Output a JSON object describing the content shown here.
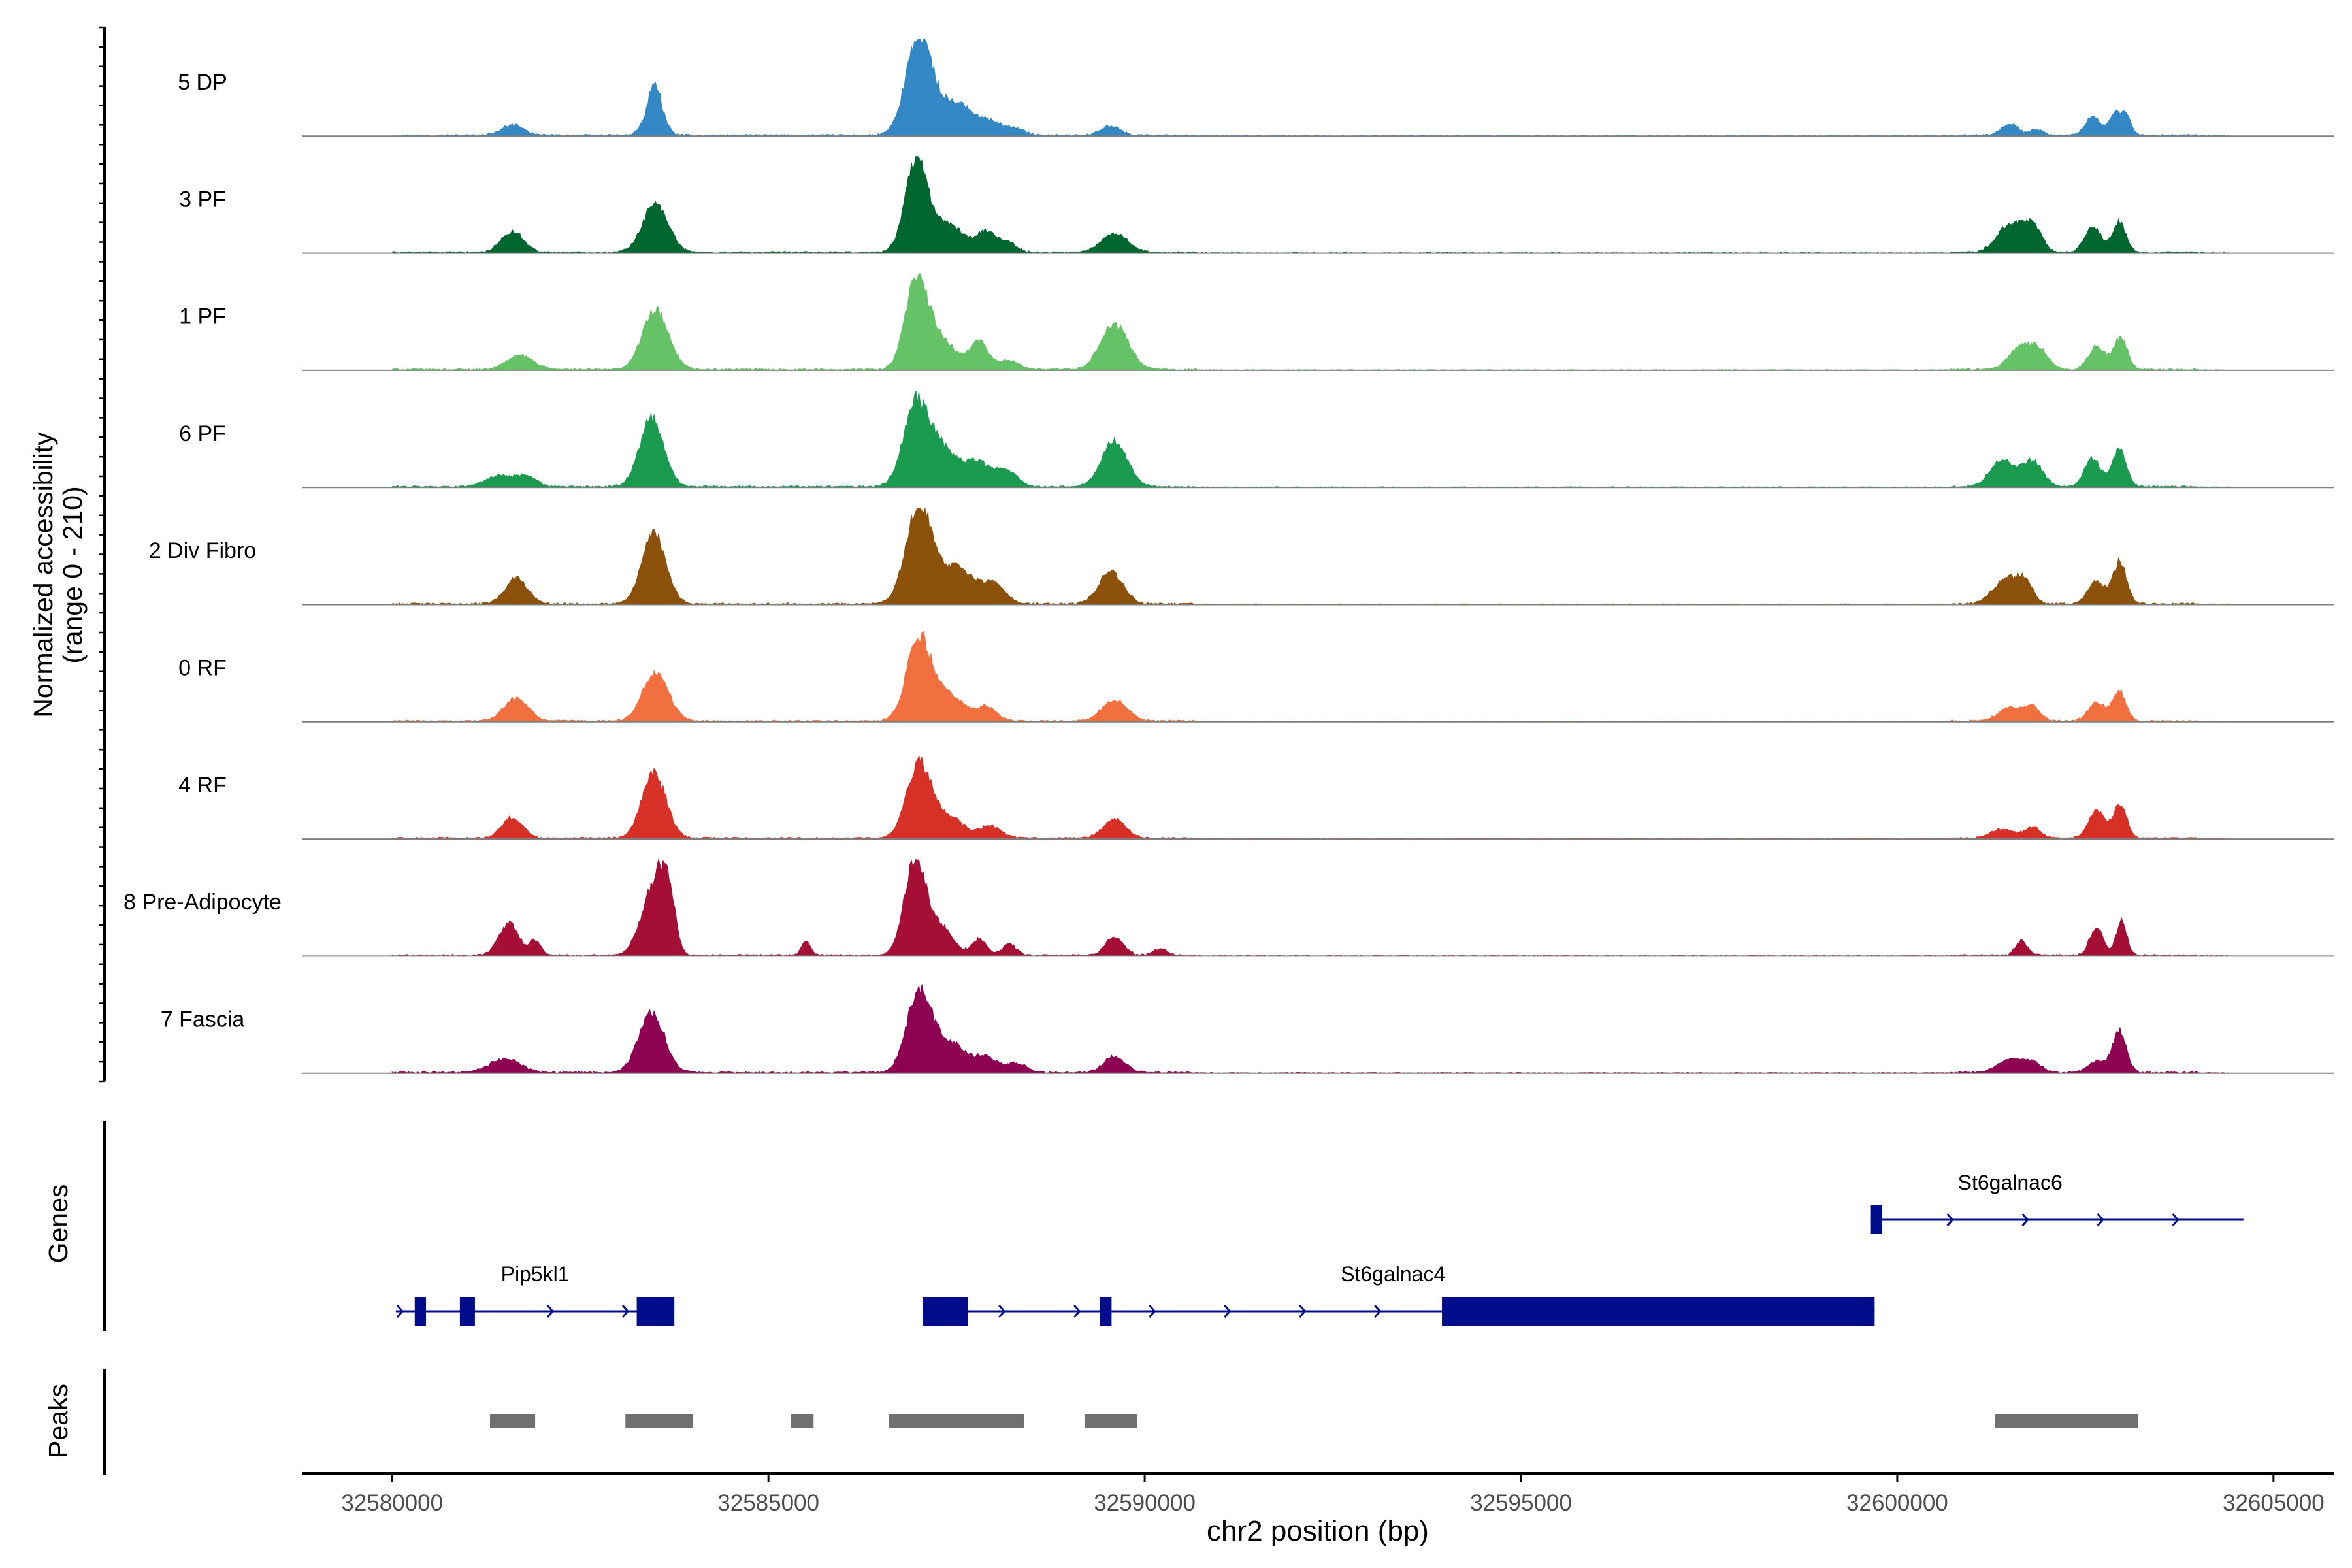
{
  "chart_data": {
    "type": "coverage-track",
    "y_axis_label_line1": "Normalized accessibility",
    "y_axis_label_line2": "(range 0 - 210)",
    "ylim": [
      0,
      210
    ],
    "x_axis_label": "chr2 position (bp)",
    "xlim": [
      32578800,
      32605800
    ],
    "x_ticks": [
      {
        "value": 32580000,
        "label": "32580000"
      },
      {
        "value": 32585000,
        "label": "32585000"
      },
      {
        "value": 32590000,
        "label": "32590000"
      },
      {
        "value": 32595000,
        "label": "32595000"
      },
      {
        "value": 32600000,
        "label": "32600000"
      },
      {
        "value": 32605000,
        "label": "32605000"
      }
    ],
    "noise_level": 4,
    "tracks": [
      {
        "name": "5 DP",
        "color": "#3388C5",
        "peaks": [
          [
            32581600,
            22,
            150
          ],
          [
            32583480,
            60,
            70
          ],
          [
            32583530,
            55,
            100
          ],
          [
            32583350,
            20,
            80
          ],
          [
            32587000,
            210,
            170
          ],
          [
            32587500,
            70,
            250
          ],
          [
            32588000,
            22,
            130
          ],
          [
            32588300,
            15,
            110
          ],
          [
            32589550,
            20,
            130
          ],
          [
            32601500,
            25,
            110
          ],
          [
            32601850,
            12,
            80
          ],
          [
            32602600,
            40,
            100
          ],
          [
            32602900,
            50,
            80
          ],
          [
            32603050,
            40,
            60
          ]
        ]
      },
      {
        "name": "3 PF",
        "color": "#006630",
        "peaks": [
          [
            32581600,
            45,
            150
          ],
          [
            32583500,
            105,
            170
          ],
          [
            32586970,
            200,
            150
          ],
          [
            32587400,
            60,
            200
          ],
          [
            32587900,
            45,
            130
          ],
          [
            32588200,
            20,
            110
          ],
          [
            32589600,
            40,
            180
          ],
          [
            32601500,
            60,
            170
          ],
          [
            32601800,
            55,
            120
          ],
          [
            32602600,
            55,
            110
          ],
          [
            32602950,
            65,
            90
          ]
        ]
      },
      {
        "name": "1 PF",
        "color": "#66C266",
        "peaks": [
          [
            32581700,
            30,
            180
          ],
          [
            32583500,
            130,
            170
          ],
          [
            32586970,
            190,
            150
          ],
          [
            32587300,
            60,
            200
          ],
          [
            32587800,
            60,
            120
          ],
          [
            32588200,
            20,
            130
          ],
          [
            32589600,
            100,
            180
          ],
          [
            32601650,
            50,
            160
          ],
          [
            32601900,
            35,
            120
          ],
          [
            32602650,
            50,
            110
          ],
          [
            32602970,
            70,
            90
          ]
        ]
      },
      {
        "name": "6 PF",
        "color": "#1A9B50",
        "peaks": [
          [
            32581450,
            25,
            200
          ],
          [
            32581800,
            20,
            120
          ],
          [
            32583450,
            150,
            160
          ],
          [
            32586950,
            160,
            160
          ],
          [
            32587300,
            85,
            240
          ],
          [
            32587800,
            45,
            150
          ],
          [
            32588150,
            35,
            150
          ],
          [
            32589600,
            100,
            170
          ],
          [
            32601400,
            60,
            160
          ],
          [
            32601800,
            55,
            130
          ],
          [
            32602600,
            60,
            110
          ],
          [
            32602950,
            80,
            90
          ]
        ]
      },
      {
        "name": "2 Div Fibro",
        "color": "#8C510A",
        "peaks": [
          [
            32581650,
            55,
            150
          ],
          [
            32583480,
            150,
            160
          ],
          [
            32587000,
            210,
            170
          ],
          [
            32587500,
            80,
            230
          ],
          [
            32588000,
            40,
            150
          ],
          [
            32589550,
            70,
            160
          ],
          [
            32601450,
            55,
            170
          ],
          [
            32601700,
            40,
            100
          ],
          [
            32602650,
            50,
            110
          ],
          [
            32602960,
            90,
            90
          ]
        ]
      },
      {
        "name": "0 RF",
        "color": "#F27040",
        "peaks": [
          [
            32581650,
            50,
            160
          ],
          [
            32583500,
            105,
            170
          ],
          [
            32587000,
            180,
            160
          ],
          [
            32587400,
            55,
            200
          ],
          [
            32587900,
            30,
            130
          ],
          [
            32589600,
            45,
            170
          ],
          [
            32601500,
            30,
            150
          ],
          [
            32601800,
            30,
            100
          ],
          [
            32602650,
            40,
            110
          ],
          [
            32602950,
            65,
            90
          ]
        ]
      },
      {
        "name": "4 RF",
        "color": "#D73027",
        "peaks": [
          [
            32581600,
            45,
            140
          ],
          [
            32583480,
            140,
            160
          ],
          [
            32587000,
            160,
            160
          ],
          [
            32587400,
            45,
            200
          ],
          [
            32587950,
            25,
            140
          ],
          [
            32589600,
            40,
            150
          ],
          [
            32601400,
            20,
            150
          ],
          [
            32601800,
            25,
            100
          ],
          [
            32602650,
            60,
            110
          ],
          [
            32602960,
            70,
            90
          ]
        ]
      },
      {
        "name": "8 Pre-Adipocyte",
        "color": "#A50F35",
        "peaks": [
          [
            32581550,
            70,
            130
          ],
          [
            32581900,
            30,
            80
          ],
          [
            32583350,
            70,
            130
          ],
          [
            32583560,
            165,
            120
          ],
          [
            32583700,
            70,
            80
          ],
          [
            32585500,
            30,
            60
          ],
          [
            32586950,
            210,
            140
          ],
          [
            32587300,
            60,
            150
          ],
          [
            32587800,
            35,
            100
          ],
          [
            32588200,
            25,
            90
          ],
          [
            32589600,
            40,
            120
          ],
          [
            32590200,
            15,
            90
          ],
          [
            32601650,
            30,
            80
          ],
          [
            32602650,
            60,
            90
          ],
          [
            32602980,
            75,
            70
          ]
        ]
      },
      {
        "name": "7 Fascia",
        "color": "#8E0152",
        "peaks": [
          [
            32581500,
            30,
            200
          ],
          [
            32583450,
            130,
            170
          ],
          [
            32587000,
            170,
            160
          ],
          [
            32587400,
            65,
            220
          ],
          [
            32587900,
            30,
            150
          ],
          [
            32588300,
            20,
            130
          ],
          [
            32589600,
            35,
            140
          ],
          [
            32601500,
            30,
            160
          ],
          [
            32601800,
            20,
            120
          ],
          [
            32602650,
            25,
            110
          ],
          [
            32602950,
            90,
            90
          ]
        ]
      }
    ],
    "genes_label": "Genes",
    "genes": [
      {
        "name": "Pip5kl1",
        "start": 32580050,
        "end": 32583750,
        "exons": [
          [
            32580300,
            32580450
          ],
          [
            32580900,
            32581100
          ],
          [
            32583250,
            32583750
          ]
        ],
        "label_x": 32581900
      },
      {
        "name": "St6galnac4",
        "start": 32587050,
        "end": 32599700,
        "exons": [
          [
            32587050,
            32587650
          ],
          [
            32589400,
            32589560
          ],
          [
            32593950,
            32599700
          ]
        ],
        "label_x": 32593300
      },
      {
        "name": "St6galnac6",
        "start": 32599650,
        "end": 32604600,
        "exons": [
          [
            32599650,
            32599800
          ]
        ],
        "label_x": 32601500
      }
    ],
    "peaks_label": "Peaks",
    "called_peaks": [
      [
        32581300,
        32581900
      ],
      [
        32583100,
        32584000
      ],
      [
        32585300,
        32585600
      ],
      [
        32586600,
        32588400
      ],
      [
        32589200,
        32589900
      ],
      [
        32601300,
        32603200
      ]
    ]
  }
}
